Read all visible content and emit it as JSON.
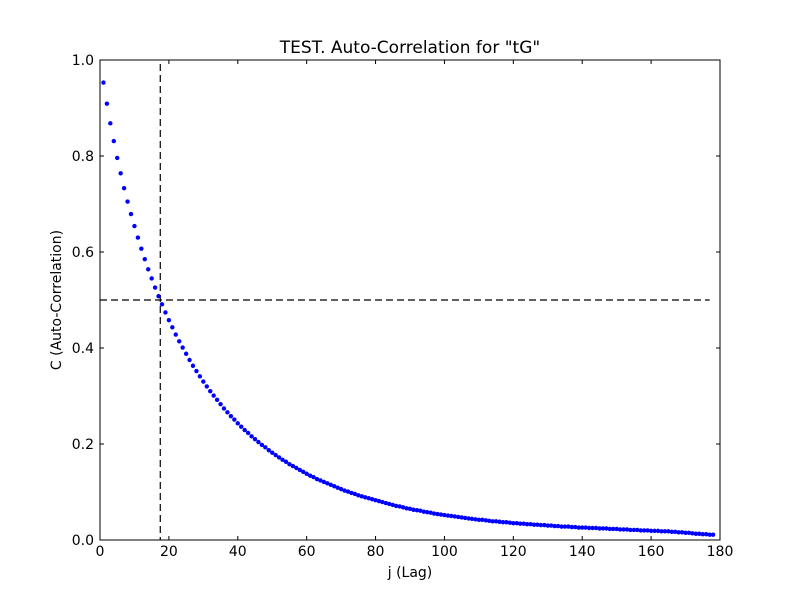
{
  "chart_data": {
    "type": "scatter",
    "title": "TEST. Auto-Correlation for \"tG\"",
    "xlabel": "j (Lag)",
    "ylabel": "C (Auto-Correlation)",
    "xlim": [
      0,
      180
    ],
    "ylim": [
      0,
      1.0
    ],
    "xticks": [
      0,
      20,
      40,
      60,
      80,
      100,
      120,
      140,
      160,
      180
    ],
    "yticks": [
      0.0,
      0.2,
      0.4,
      0.6,
      0.8,
      1.0
    ],
    "xtick_labels": [
      "0",
      "20",
      "40",
      "60",
      "80",
      "100",
      "120",
      "140",
      "160",
      "180"
    ],
    "ytick_labels": [
      "0.0",
      "0.2",
      "0.4",
      "0.6",
      "0.8",
      "1.0"
    ],
    "grid": false,
    "series": [
      {
        "color": "#0000ff",
        "marker": "dot",
        "x_start": 1,
        "x_step": 1,
        "values": [
          0.953,
          0.909,
          0.868,
          0.831,
          0.796,
          0.764,
          0.733,
          0.705,
          0.679,
          0.654,
          0.63,
          0.607,
          0.585,
          0.564,
          0.545,
          0.526,
          0.508,
          0.491,
          0.474,
          0.458,
          0.443,
          0.428,
          0.414,
          0.401,
          0.388,
          0.375,
          0.363,
          0.352,
          0.341,
          0.33,
          0.32,
          0.31,
          0.301,
          0.292,
          0.283,
          0.274,
          0.266,
          0.258,
          0.251,
          0.243,
          0.236,
          0.229,
          0.223,
          0.216,
          0.21,
          0.204,
          0.198,
          0.193,
          0.187,
          0.182,
          0.177,
          0.172,
          0.167,
          0.163,
          0.158,
          0.154,
          0.15,
          0.146,
          0.142,
          0.138,
          0.134,
          0.131,
          0.127,
          0.124,
          0.121,
          0.118,
          0.115,
          0.112,
          0.109,
          0.106,
          0.103,
          0.101,
          0.098,
          0.096,
          0.093,
          0.091,
          0.089,
          0.087,
          0.085,
          0.083,
          0.081,
          0.079,
          0.077,
          0.075,
          0.073,
          0.071,
          0.07,
          0.068,
          0.066,
          0.065,
          0.063,
          0.062,
          0.061,
          0.059,
          0.058,
          0.057,
          0.055,
          0.054,
          0.053,
          0.052,
          0.051,
          0.05,
          0.049,
          0.048,
          0.047,
          0.046,
          0.045,
          0.044,
          0.043,
          0.042,
          0.042,
          0.041,
          0.04,
          0.039,
          0.039,
          0.038,
          0.037,
          0.037,
          0.036,
          0.035,
          0.035,
          0.034,
          0.034,
          0.033,
          0.033,
          0.032,
          0.032,
          0.031,
          0.031,
          0.03,
          0.03,
          0.029,
          0.029,
          0.028,
          0.028,
          0.028,
          0.027,
          0.027,
          0.026,
          0.026,
          0.026,
          0.025,
          0.025,
          0.025,
          0.024,
          0.024,
          0.024,
          0.023,
          0.023,
          0.023,
          0.022,
          0.022,
          0.022,
          0.021,
          0.021,
          0.021,
          0.02,
          0.02,
          0.02,
          0.019,
          0.019,
          0.019,
          0.018,
          0.018,
          0.018,
          0.017,
          0.017,
          0.016,
          0.016,
          0.015,
          0.015,
          0.014,
          0.013,
          0.013,
          0.012,
          0.012,
          0.011,
          0.011
        ]
      }
    ],
    "reference_lines": [
      {
        "orientation": "horizontal",
        "value": 0.5,
        "style": "dashed",
        "color": "#000000"
      },
      {
        "orientation": "vertical",
        "value": 17.5,
        "style": "dashed",
        "color": "#000000"
      }
    ]
  }
}
